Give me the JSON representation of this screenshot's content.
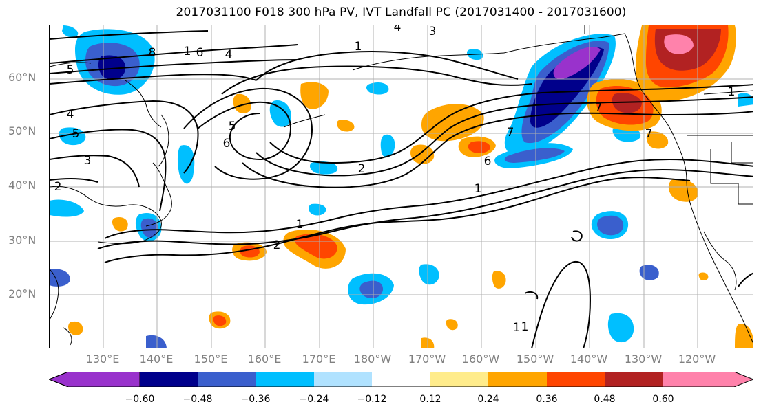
{
  "title": "2017031100 F018 300 hPa PV, IVT Landfall PC (2017031400 - 2017031600)",
  "map": {
    "lat_labels": [
      "60°N",
      "50°N",
      "40°N",
      "30°N",
      "20°N"
    ],
    "lon_labels": [
      "130°E",
      "140°E",
      "150°E",
      "160°E",
      "170°E",
      "180°W",
      "170°W",
      "160°W",
      "150°W",
      "140°W",
      "130°W",
      "120°W"
    ],
    "contour_labels": [
      "1",
      "1",
      "1",
      "1",
      "1",
      "2",
      "2",
      "2",
      "3",
      "3",
      "4",
      "4",
      "4",
      "5",
      "5",
      "5",
      "6",
      "6",
      "6",
      "7",
      "7",
      "7",
      "8",
      "1",
      "1"
    ],
    "colors": {
      "land_outline": "#000000",
      "gridline": "#b0b0b0",
      "contour": "#000000"
    }
  },
  "colorbar": {
    "ticks": [
      "−0.60",
      "−0.48",
      "−0.36",
      "−0.24",
      "−0.12",
      "0.12",
      "0.24",
      "0.36",
      "0.48",
      "0.60"
    ],
    "colors": [
      "#9932cc",
      "#00008b",
      "#3a5fcd",
      "#00bfff",
      "#b0e2ff",
      "#ffffff",
      "#ffec8b",
      "#ffa500",
      "#ff4500",
      "#b22222",
      "#ff82ab"
    ]
  }
}
